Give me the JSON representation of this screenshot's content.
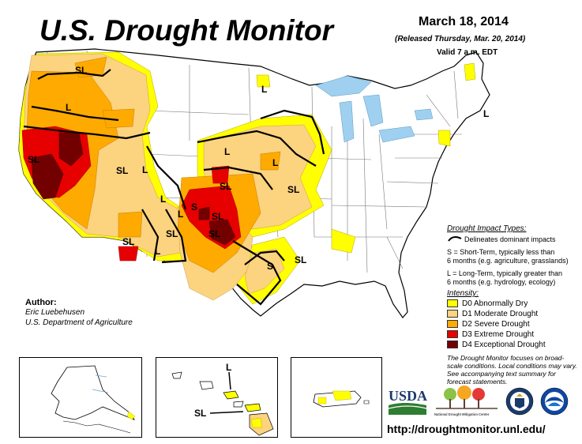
{
  "header": {
    "title": "U.S. Drought Monitor",
    "date": "March 18, 2014",
    "released": "(Released Thursday, Mar. 20, 2014)",
    "valid": "Valid 7 a.m. EDT"
  },
  "legend": {
    "impact_title": "Drought Impact Types:",
    "delineates": "Delineates dominant impacts",
    "short_term_1": "S = Short-Term, typically less than",
    "short_term_2": "6 months (e.g. agriculture, grasslands)",
    "long_term_1": "L = Long-Term, typically greater than",
    "long_term_2": "6 months (e.g. hydrology, ecology)",
    "intensity_title": "Intensity:",
    "categories": [
      {
        "code": "D0",
        "label": "D0 Abnormally Dry",
        "color": "#ffff00"
      },
      {
        "code": "D1",
        "label": "D1 Moderate Drought",
        "color": "#fcd37f"
      },
      {
        "code": "D2",
        "label": "D2 Severe Drought",
        "color": "#ffaa00"
      },
      {
        "code": "D3",
        "label": "D3 Extreme Drought",
        "color": "#e60000"
      },
      {
        "code": "D4",
        "label": "D4 Exceptional Drought",
        "color": "#730000"
      }
    ]
  },
  "author": {
    "label": "Author:",
    "name": "Eric Luebehusen",
    "org": "U.S. Department of Agriculture"
  },
  "note": "The Drought Monitor focuses on broad-scale conditions. Local conditions may vary. See accompanying text summary for forecast statements.",
  "map_labels": [
    "SL",
    "L",
    "SL",
    "SL",
    "L",
    "L",
    "SL",
    "SL",
    "L",
    "SL",
    "S",
    "SL",
    "L",
    "L",
    "L",
    "S",
    "SL",
    "L",
    "SL",
    "L",
    "SL"
  ],
  "inset_labels": {
    "hawaii_1": "L",
    "hawaii_2": "SL"
  },
  "logos": {
    "usda": "USDA",
    "ndmc": "National Drought Mitigation Center"
  },
  "url": "http://droughtmonitor.unl.edu/"
}
